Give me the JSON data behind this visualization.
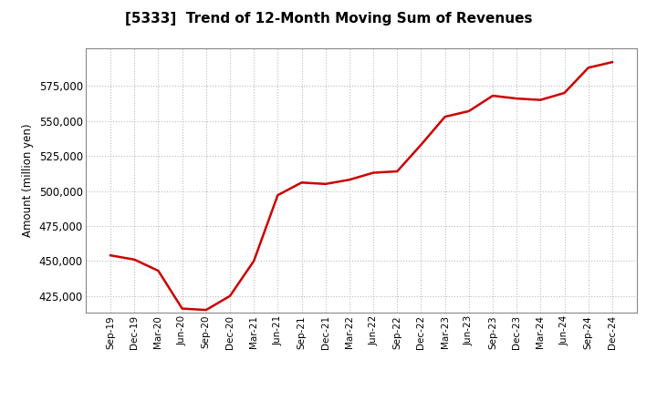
{
  "title": "[5333]  Trend of 12-Month Moving Sum of Revenues",
  "ylabel": "Amount (million yen)",
  "line_color": "#cc0000",
  "line_width": 1.8,
  "background_color": "#ffffff",
  "grid_color": "#bbbbbb",
  "ylim": [
    413000,
    602000
  ],
  "yticks": [
    425000,
    450000,
    475000,
    500000,
    525000,
    550000,
    575000
  ],
  "x_labels": [
    "Sep-19",
    "Dec-19",
    "Mar-20",
    "Jun-20",
    "Sep-20",
    "Dec-20",
    "Mar-21",
    "Jun-21",
    "Sep-21",
    "Dec-21",
    "Mar-22",
    "Jun-22",
    "Sep-22",
    "Dec-22",
    "Mar-23",
    "Jun-23",
    "Sep-23",
    "Dec-23",
    "Mar-24",
    "Jun-24",
    "Sep-24",
    "Dec-24"
  ],
  "values": [
    454000,
    451000,
    443000,
    416000,
    415000,
    425000,
    450000,
    497000,
    506000,
    505000,
    508000,
    513000,
    514000,
    533000,
    553000,
    557000,
    568000,
    566000,
    565000,
    570000,
    588000,
    592000
  ]
}
